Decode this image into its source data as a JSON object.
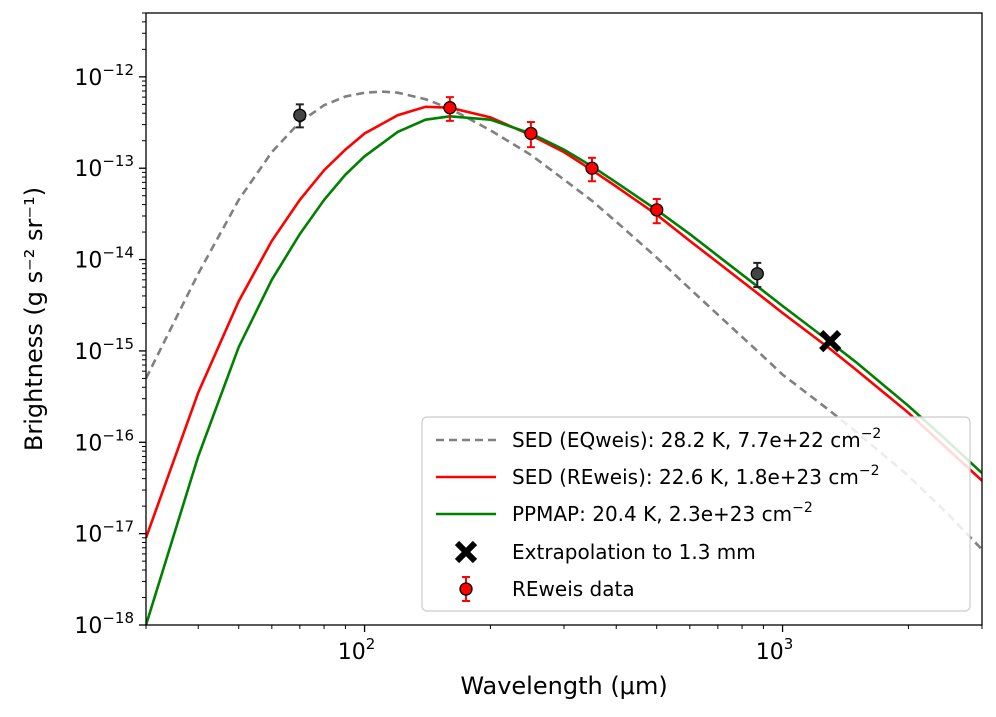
{
  "chart_data": {
    "type": "line",
    "xlabel": "Wavelength (μm)",
    "ylabel": "Brightness (g s⁻² sr⁻¹)",
    "xscale": "log",
    "yscale": "log",
    "xlim": [
      30,
      3000
    ],
    "ylim": [
      1e-18,
      5e-12
    ],
    "x_ticks": [
      {
        "value": 100,
        "base": "10",
        "exp": "2"
      },
      {
        "value": 1000,
        "base": "10",
        "exp": "3"
      }
    ],
    "y_ticks": [
      {
        "value": 1e-18,
        "base": "10",
        "exp": "−18"
      },
      {
        "value": 1e-17,
        "base": "10",
        "exp": "−17"
      },
      {
        "value": 1e-16,
        "base": "10",
        "exp": "−16"
      },
      {
        "value": 1e-15,
        "base": "10",
        "exp": "−15"
      },
      {
        "value": 1e-14,
        "base": "10",
        "exp": "−14"
      },
      {
        "value": 1e-13,
        "base": "10",
        "exp": "−13"
      },
      {
        "value": 1e-12,
        "base": "10",
        "exp": "−12"
      }
    ],
    "grid": false,
    "legend_position": "lower-right",
    "series": [
      {
        "name": "SED (EQweis): 28.2 K, 7.7e+22 cm⁻²",
        "legend_main": "SED (EQweis): 28.2 K, 7.7e+22 cm",
        "legend_sup": "−2",
        "style": "dashed",
        "color": "#808080",
        "x": [
          30,
          40,
          50,
          60,
          70,
          80,
          90,
          100,
          110,
          120,
          140,
          160,
          200,
          250,
          300,
          350,
          400,
          500,
          600,
          700,
          870,
          1000,
          1300,
          1500,
          2000,
          2500,
          3000
        ],
        "y": [
          5e-16,
          7e-15,
          4.5e-14,
          1.5e-13,
          3.2e-13,
          4.9e-13,
          6.1e-13,
          6.7e-13,
          6.9e-13,
          6.7e-13,
          5.7e-13,
          4.5e-13,
          2.6e-13,
          1.4e-13,
          7.5e-14,
          4.4e-14,
          2.6e-14,
          1.05e-14,
          4.8e-15,
          2.5e-15,
          1e-15,
          5.5e-16,
          2.2e-16,
          1.3e-16,
          4.3e-17,
          1.6e-17,
          6.7e-18
        ]
      },
      {
        "name": "SED (REweis): 22.6 K, 1.8e+23 cm⁻²",
        "legend_main": "SED (REweis): 22.6 K, 1.8e+23 cm",
        "legend_sup": "−2",
        "style": "solid",
        "color": "#ff0000",
        "x": [
          30,
          40,
          50,
          60,
          70,
          80,
          90,
          100,
          120,
          140,
          160,
          200,
          250,
          300,
          350,
          400,
          500,
          600,
          700,
          870,
          1000,
          1300,
          1500,
          2000,
          2500,
          3000
        ],
        "y": [
          9e-18,
          3.5e-16,
          3.5e-15,
          1.6e-14,
          4.5e-14,
          9.5e-14,
          1.6e-13,
          2.4e-13,
          3.8e-13,
          4.7e-13,
          4.6e-13,
          3.6e-13,
          2.3e-13,
          1.5e-13,
          9.5e-14,
          6.3e-14,
          3.1e-14,
          1.6e-14,
          9.3e-15,
          4.3e-15,
          2.6e-15,
          1.05e-15,
          6.2e-16,
          2.1e-16,
          8.2e-17,
          3.8e-17
        ]
      },
      {
        "name": "PPMAP: 20.4 K, 2.3e+23 cm⁻²",
        "legend_main": "PPMAP: 20.4 K, 2.3e+23 cm",
        "legend_sup": "−2",
        "style": "solid",
        "color": "#008000",
        "x": [
          30,
          40,
          50,
          60,
          70,
          80,
          90,
          100,
          120,
          140,
          160,
          200,
          250,
          300,
          350,
          400,
          500,
          600,
          700,
          870,
          1000,
          1300,
          1500,
          2000,
          2500,
          3000
        ],
        "y": [
          1e-18,
          7e-17,
          1.1e-15,
          6e-15,
          1.9e-14,
          4.5e-14,
          8.5e-14,
          1.35e-13,
          2.5e-13,
          3.4e-13,
          3.7e-13,
          3.4e-13,
          2.4e-13,
          1.6e-13,
          1.05e-13,
          7e-14,
          3.5e-14,
          1.9e-14,
          1.1e-14,
          5.1e-15,
          3.1e-15,
          1.25e-15,
          7.5e-16,
          2.5e-16,
          1e-16,
          4.6e-17
        ]
      }
    ],
    "extrapolation": {
      "name": "Extrapolation to 1.3 mm",
      "color": "#000000",
      "x": 1300,
      "y": 1.28e-15
    },
    "data_points": {
      "name": "REweis data",
      "face_color": "#ff0000",
      "error_color": "#ff0000",
      "points": [
        {
          "x": 160,
          "y": 4.6e-13,
          "ylo": 3.3e-13,
          "yhi": 6e-13
        },
        {
          "x": 250,
          "y": 2.4e-13,
          "ylo": 1.7e-13,
          "yhi": 3.2e-13
        },
        {
          "x": 350,
          "y": 1e-13,
          "ylo": 7.2e-14,
          "yhi": 1.3e-13
        },
        {
          "x": 500,
          "y": 3.5e-14,
          "ylo": 2.5e-14,
          "yhi": 4.6e-14
        }
      ]
    },
    "other_points": {
      "face_color": "#444444",
      "error_color": "#222222",
      "points": [
        {
          "x": 70,
          "y": 3.8e-13,
          "ylo": 2.8e-13,
          "yhi": 5e-13
        },
        {
          "x": 870,
          "y": 7e-15,
          "ylo": 5e-15,
          "yhi": 9.2e-15
        }
      ]
    }
  }
}
